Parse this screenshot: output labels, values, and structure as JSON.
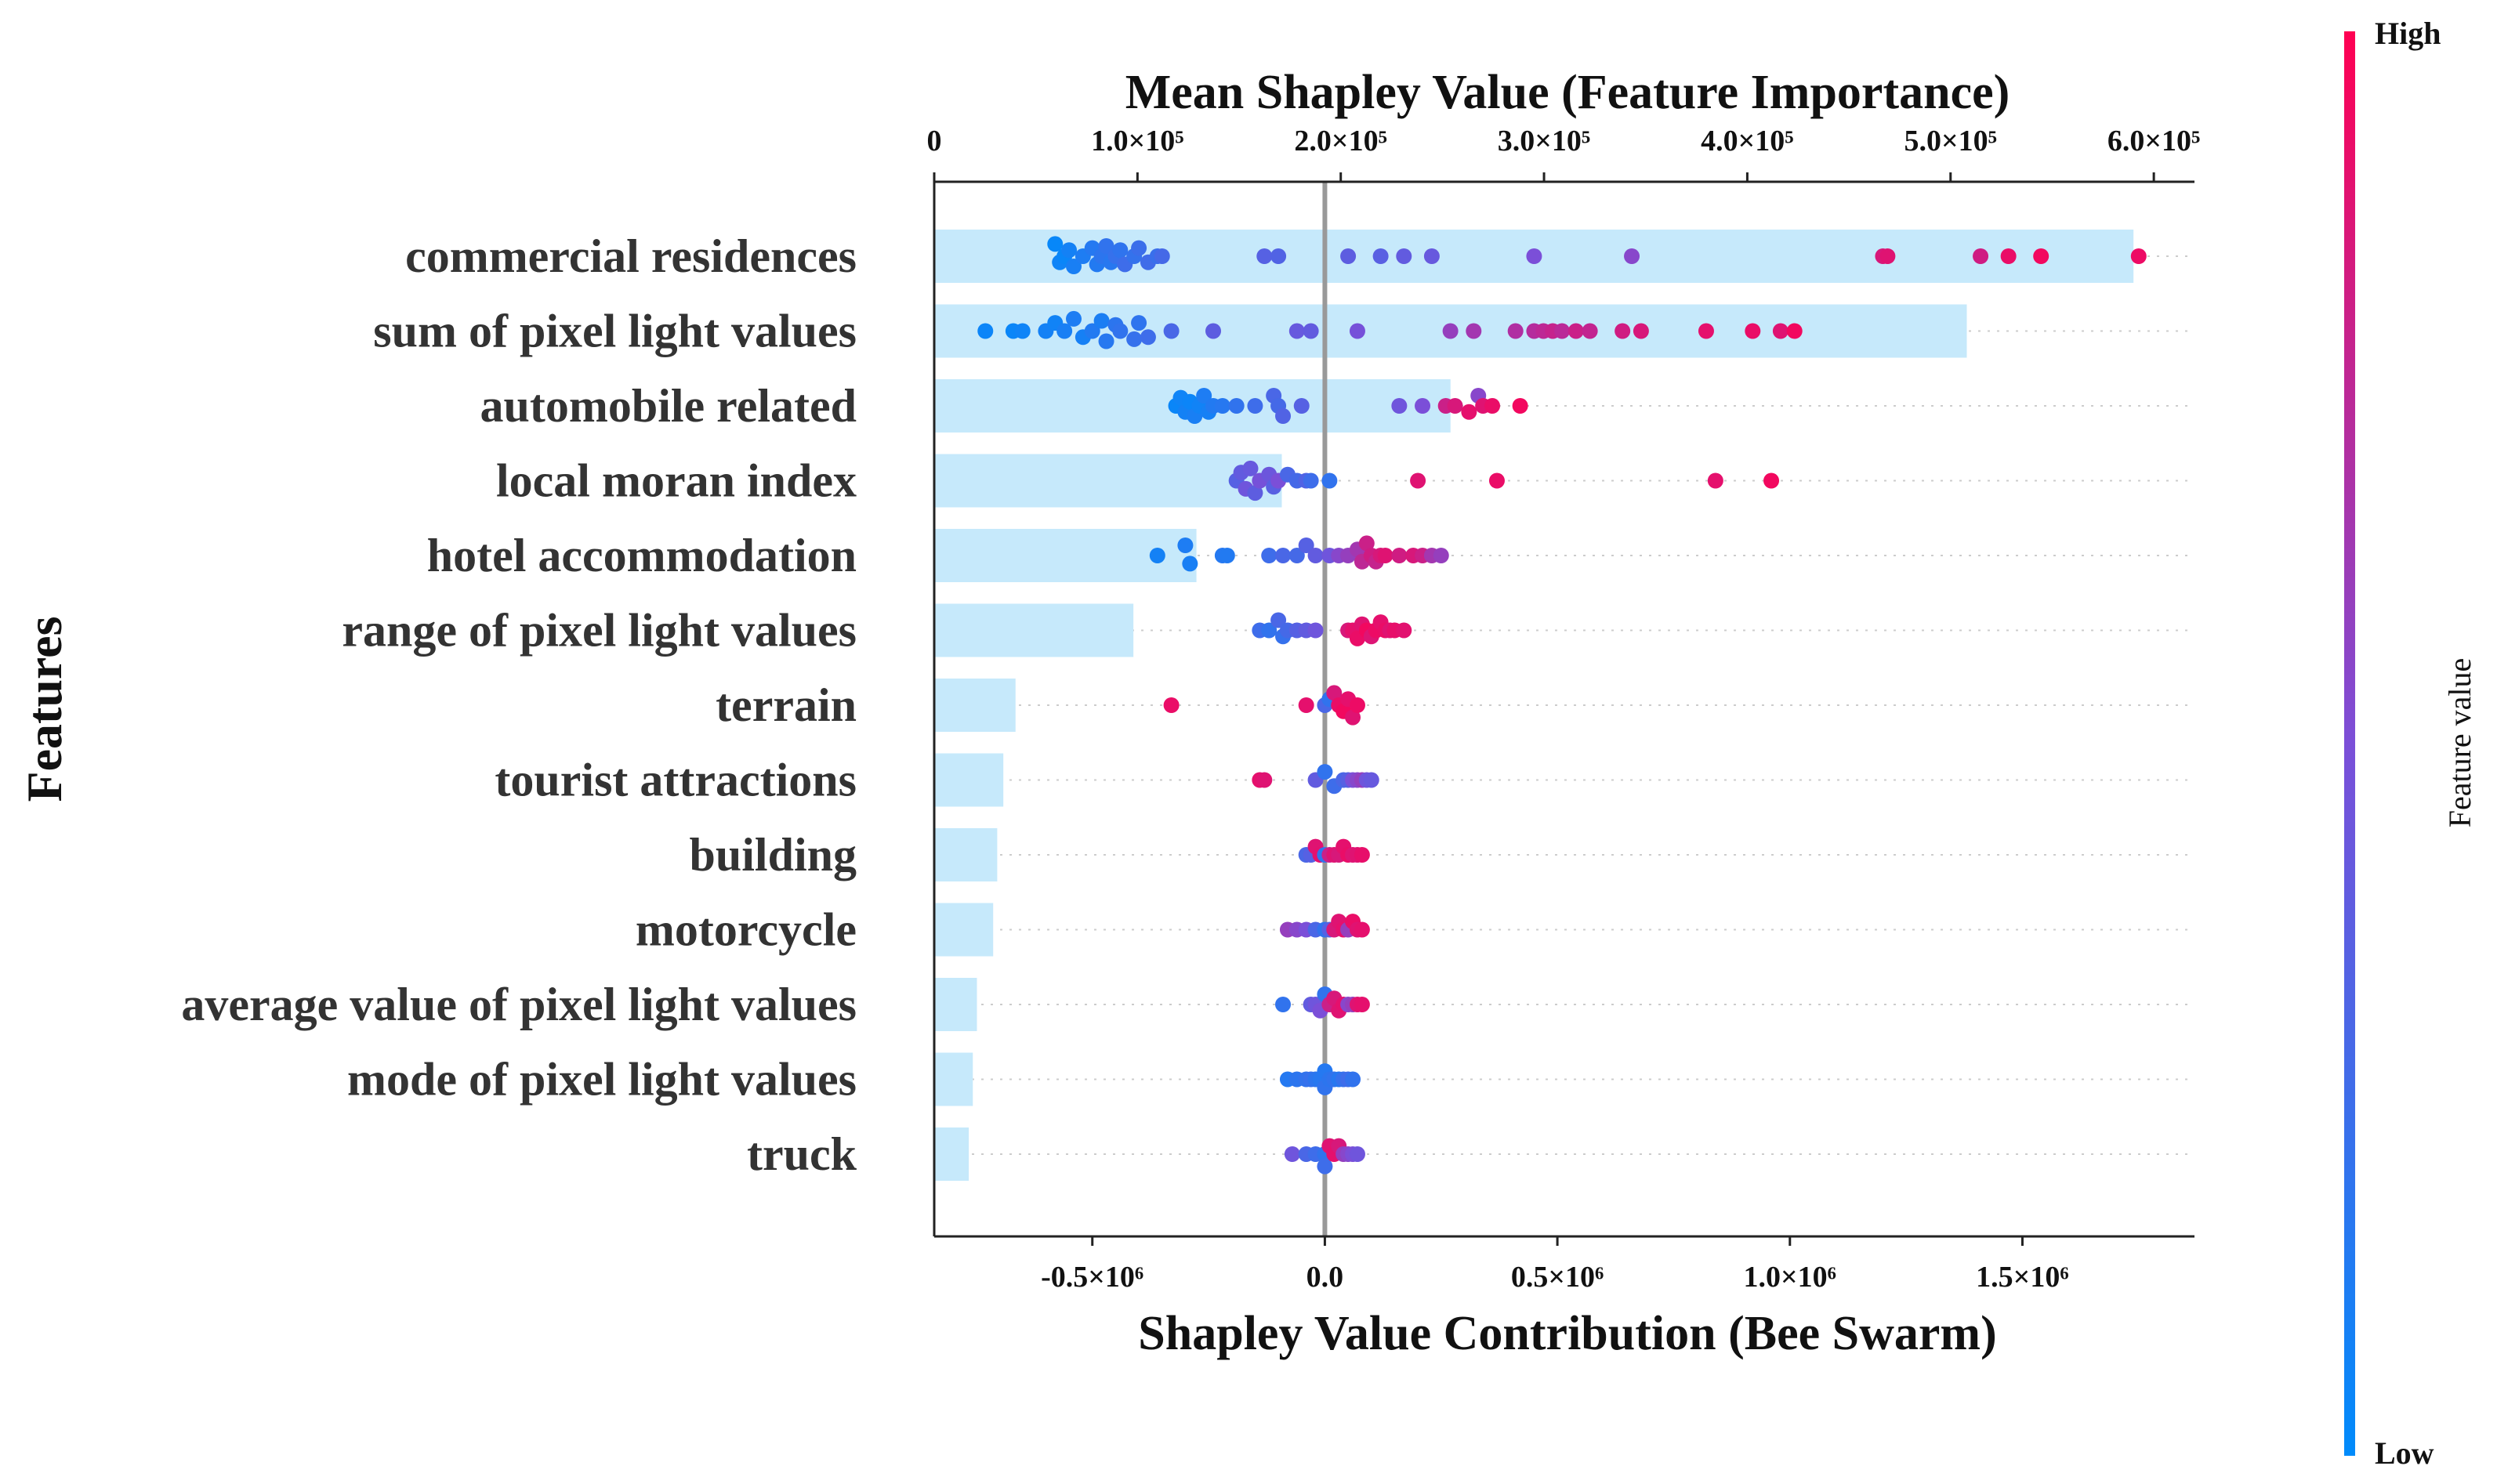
{
  "chart_data": {
    "type": "bar+beeswarm",
    "title": "Mean Shapley Value (Feature Importance)",
    "xlabel": "Shapley Value Contribution (Bee Swarm)",
    "ylabel": "Features",
    "features": [
      "commercial residences",
      "sum of pixel light values",
      "automobile related",
      "local moran index",
      "hotel accommodation",
      "range of pixel light values",
      "terrain",
      "tourist attractions",
      "building",
      "motorcycle",
      "average value of pixel light values",
      "mode of pixel light values",
      "truck"
    ],
    "mean_shap_axis": {
      "range": [
        0,
        620000
      ],
      "ticks": [
        0,
        100000,
        200000,
        300000,
        400000,
        500000,
        600000
      ],
      "tick_labels": [
        "0",
        "1.0×10⁵",
        "2.0×10⁵",
        "3.0×10⁵",
        "4.0×10⁵",
        "5.0×10⁵",
        "6.0×10⁵"
      ]
    },
    "mean_shap_values": [
      590000,
      508000,
      254000,
      171000,
      129000,
      98000,
      40000,
      34000,
      31000,
      29000,
      21000,
      19000,
      17000
    ],
    "bar_color": "#c6e9fb",
    "shap_axis": {
      "range": [
        -840000.0,
        1870000.0
      ],
      "ticks": [
        -500000.0,
        0,
        500000.0,
        1000000.0,
        1500000.0
      ],
      "tick_labels": [
        "-0.5×10⁶",
        "0.0",
        "0.5×10⁶",
        "1.0×10⁶",
        "1.5×10⁶"
      ],
      "zero_line": true
    },
    "points_format": "[shap_value_millions, feature_value_0_to_1, vertical_jitter_-1_to_1]",
    "points": [
      [
        [
          -0.58,
          0.03,
          -0.6
        ],
        [
          -0.57,
          0.06,
          0.3
        ],
        [
          -0.56,
          0.04,
          0.0
        ],
        [
          -0.55,
          0.08,
          -0.3
        ],
        [
          -0.54,
          0.1,
          0.5
        ],
        [
          -0.52,
          0.12,
          0.0
        ],
        [
          -0.5,
          0.15,
          -0.4
        ],
        [
          -0.49,
          0.14,
          0.4
        ],
        [
          -0.48,
          0.18,
          0.0
        ],
        [
          -0.47,
          0.2,
          -0.5
        ],
        [
          -0.46,
          0.16,
          0.3
        ],
        [
          -0.45,
          0.22,
          0.0
        ],
        [
          -0.44,
          0.19,
          -0.3
        ],
        [
          -0.43,
          0.25,
          0.4
        ],
        [
          -0.41,
          0.21,
          0.0
        ],
        [
          -0.4,
          0.24,
          -0.4
        ],
        [
          -0.38,
          0.26,
          0.3
        ],
        [
          -0.36,
          0.23,
          0.0
        ],
        [
          -0.35,
          0.28,
          0.0
        ],
        [
          -0.13,
          0.35,
          0.0
        ],
        [
          -0.1,
          0.33,
          0.0
        ],
        [
          0.05,
          0.38,
          0.0
        ],
        [
          0.12,
          0.36,
          0.0
        ],
        [
          0.17,
          0.4,
          0.0
        ],
        [
          0.23,
          0.42,
          0.0
        ],
        [
          0.45,
          0.5,
          0.0
        ],
        [
          0.66,
          0.55,
          0.0
        ],
        [
          1.2,
          0.85,
          0.0
        ],
        [
          1.21,
          0.88,
          0.0
        ],
        [
          1.41,
          0.82,
          0.0
        ],
        [
          1.47,
          0.92,
          0.0
        ],
        [
          1.54,
          0.95,
          0.0
        ],
        [
          1.75,
          0.93,
          0.0
        ]
      ],
      [
        [
          -0.73,
          0.05,
          0.0
        ],
        [
          -0.67,
          0.04,
          0.0
        ],
        [
          -0.65,
          0.06,
          0.0
        ],
        [
          -0.6,
          0.08,
          0.0
        ],
        [
          -0.58,
          0.07,
          -0.4
        ],
        [
          -0.56,
          0.1,
          0.0
        ],
        [
          -0.54,
          0.12,
          -0.6
        ],
        [
          -0.52,
          0.09,
          0.3
        ],
        [
          -0.5,
          0.14,
          0.0
        ],
        [
          -0.48,
          0.11,
          -0.5
        ],
        [
          -0.47,
          0.16,
          0.5
        ],
        [
          -0.45,
          0.18,
          -0.3
        ],
        [
          -0.44,
          0.2,
          0.0
        ],
        [
          -0.41,
          0.22,
          0.4
        ],
        [
          -0.4,
          0.19,
          -0.4
        ],
        [
          -0.38,
          0.25,
          0.3
        ],
        [
          -0.33,
          0.3,
          0.0
        ],
        [
          -0.24,
          0.38,
          0.0
        ],
        [
          -0.06,
          0.42,
          0.0
        ],
        [
          -0.03,
          0.4,
          0.0
        ],
        [
          0.07,
          0.48,
          0.0
        ],
        [
          0.27,
          0.6,
          0.0
        ],
        [
          0.32,
          0.65,
          0.0
        ],
        [
          0.41,
          0.7,
          0.0
        ],
        [
          0.45,
          0.72,
          0.0
        ],
        [
          0.47,
          0.75,
          0.0
        ],
        [
          0.49,
          0.78,
          0.0
        ],
        [
          0.51,
          0.74,
          0.0
        ],
        [
          0.54,
          0.8,
          0.0
        ],
        [
          0.57,
          0.77,
          0.0
        ],
        [
          0.64,
          0.82,
          0.0
        ],
        [
          0.68,
          0.85,
          0.0
        ],
        [
          0.82,
          0.9,
          0.0
        ],
        [
          0.92,
          0.92,
          0.0
        ],
        [
          0.98,
          0.88,
          0.0
        ],
        [
          1.01,
          0.95,
          0.0
        ]
      ],
      [
        [
          -0.32,
          0.04,
          0.0
        ],
        [
          -0.31,
          0.06,
          -0.4
        ],
        [
          -0.3,
          0.08,
          0.3
        ],
        [
          -0.29,
          0.05,
          -0.2
        ],
        [
          -0.28,
          0.1,
          0.5
        ],
        [
          -0.27,
          0.07,
          0.0
        ],
        [
          -0.26,
          0.12,
          -0.5
        ],
        [
          -0.25,
          0.09,
          0.3
        ],
        [
          -0.24,
          0.14,
          0.0
        ],
        [
          -0.22,
          0.16,
          0.0
        ],
        [
          -0.19,
          0.2,
          0.0
        ],
        [
          -0.15,
          0.25,
          0.0
        ],
        [
          -0.11,
          0.3,
          -0.5
        ],
        [
          -0.1,
          0.28,
          0.0
        ],
        [
          -0.09,
          0.33,
          0.5
        ],
        [
          -0.05,
          0.35,
          0.0
        ],
        [
          0.16,
          0.45,
          0.0
        ],
        [
          0.21,
          0.5,
          0.0
        ],
        [
          0.26,
          0.8,
          0.0
        ],
        [
          0.28,
          0.85,
          0.0
        ],
        [
          0.31,
          0.9,
          0.3
        ],
        [
          0.33,
          0.55,
          -0.5
        ],
        [
          0.34,
          0.88,
          0.0
        ],
        [
          0.36,
          0.92,
          0.0
        ],
        [
          0.42,
          0.95,
          0.0
        ]
      ],
      [
        [
          -0.19,
          0.35,
          0.0
        ],
        [
          -0.18,
          0.4,
          -0.4
        ],
        [
          -0.17,
          0.45,
          0.4
        ],
        [
          -0.16,
          0.42,
          -0.6
        ],
        [
          -0.15,
          0.38,
          0.6
        ],
        [
          -0.14,
          0.48,
          0.0
        ],
        [
          -0.12,
          0.44,
          -0.3
        ],
        [
          -0.11,
          0.36,
          0.3
        ],
        [
          -0.1,
          0.5,
          0.0
        ],
        [
          -0.08,
          0.3,
          -0.3
        ],
        [
          -0.06,
          0.28,
          0.0
        ],
        [
          -0.04,
          0.33,
          0.0
        ],
        [
          -0.03,
          0.25,
          0.0
        ],
        [
          0.01,
          0.2,
          0.0
        ],
        [
          0.2,
          0.88,
          0.0
        ],
        [
          0.37,
          0.92,
          0.0
        ],
        [
          0.84,
          0.9,
          0.0
        ],
        [
          0.96,
          0.95,
          0.0
        ]
      ],
      [
        [
          -0.36,
          0.08,
          0.0
        ],
        [
          -0.3,
          0.12,
          -0.5
        ],
        [
          -0.29,
          0.1,
          0.4
        ],
        [
          -0.22,
          0.15,
          0.0
        ],
        [
          -0.21,
          0.14,
          0.0
        ],
        [
          -0.12,
          0.25,
          0.0
        ],
        [
          -0.09,
          0.3,
          0.0
        ],
        [
          -0.06,
          0.28,
          0.0
        ],
        [
          -0.04,
          0.35,
          -0.5
        ],
        [
          -0.02,
          0.4,
          0.0
        ],
        [
          0.01,
          0.45,
          0.0
        ],
        [
          0.03,
          0.55,
          0.0
        ],
        [
          0.05,
          0.6,
          0.0
        ],
        [
          0.07,
          0.65,
          -0.3
        ],
        [
          0.08,
          0.75,
          0.3
        ],
        [
          0.09,
          0.8,
          -0.6
        ],
        [
          0.1,
          0.82,
          0.0
        ],
        [
          0.11,
          0.78,
          0.3
        ],
        [
          0.12,
          0.85,
          0.0
        ],
        [
          0.13,
          0.88,
          0.0
        ],
        [
          0.16,
          0.82,
          0.0
        ],
        [
          0.19,
          0.85,
          0.0
        ],
        [
          0.21,
          0.8,
          0.0
        ],
        [
          0.23,
          0.65,
          0.0
        ],
        [
          0.25,
          0.6,
          0.0
        ]
      ],
      [
        [
          -0.14,
          0.25,
          0.0
        ],
        [
          -0.12,
          0.2,
          0.0
        ],
        [
          -0.1,
          0.3,
          -0.5
        ],
        [
          -0.09,
          0.22,
          0.3
        ],
        [
          -0.08,
          0.28,
          0.0
        ],
        [
          -0.06,
          0.35,
          0.0
        ],
        [
          -0.04,
          0.4,
          0.0
        ],
        [
          -0.02,
          0.45,
          0.0
        ],
        [
          0.05,
          0.85,
          0.0
        ],
        [
          0.06,
          0.9,
          0.0
        ],
        [
          0.07,
          0.92,
          0.4
        ],
        [
          0.08,
          0.88,
          -0.3
        ],
        [
          0.09,
          0.95,
          0.0
        ],
        [
          0.1,
          0.87,
          0.3
        ],
        [
          0.11,
          0.93,
          0.0
        ],
        [
          0.12,
          0.9,
          -0.4
        ],
        [
          0.13,
          0.92,
          0.0
        ],
        [
          0.14,
          0.88,
          0.0
        ],
        [
          0.15,
          0.91,
          0.0
        ],
        [
          0.17,
          0.89,
          0.0
        ]
      ],
      [
        [
          -0.33,
          0.92,
          0.0
        ],
        [
          -0.04,
          0.9,
          0.0
        ],
        [
          0.0,
          0.3,
          0.0
        ],
        [
          0.01,
          0.2,
          -0.3
        ],
        [
          0.02,
          0.85,
          -0.6
        ],
        [
          0.03,
          0.92,
          0.0
        ],
        [
          0.04,
          0.95,
          0.3
        ],
        [
          0.05,
          0.9,
          -0.3
        ],
        [
          0.06,
          0.88,
          0.6
        ],
        [
          0.07,
          0.93,
          0.0
        ]
      ],
      [
        [
          -0.14,
          0.9,
          0.0
        ],
        [
          -0.13,
          0.88,
          0.0
        ],
        [
          -0.02,
          0.4,
          0.0
        ],
        [
          0.0,
          0.2,
          -0.4
        ],
        [
          0.02,
          0.25,
          0.3
        ],
        [
          0.04,
          0.3,
          0.0
        ],
        [
          0.05,
          0.35,
          0.0
        ],
        [
          0.06,
          0.5,
          0.0
        ],
        [
          0.07,
          0.55,
          0.0
        ],
        [
          0.08,
          0.6,
          0.0
        ],
        [
          0.09,
          0.45,
          0.0
        ],
        [
          0.1,
          0.42,
          0.0
        ]
      ],
      [
        [
          -0.04,
          0.3,
          0.0
        ],
        [
          -0.03,
          0.35,
          0.0
        ],
        [
          -0.02,
          0.88,
          -0.4
        ],
        [
          -0.01,
          0.9,
          0.0
        ],
        [
          0.0,
          0.2,
          0.0
        ],
        [
          0.01,
          0.8,
          0.0
        ],
        [
          0.02,
          0.88,
          0.0
        ],
        [
          0.03,
          0.85,
          0.0
        ],
        [
          0.04,
          0.9,
          -0.4
        ],
        [
          0.05,
          0.92,
          0.0
        ],
        [
          0.06,
          0.87,
          0.0
        ],
        [
          0.07,
          0.88,
          0.0
        ],
        [
          0.08,
          0.91,
          0.0
        ]
      ],
      [
        [
          -0.08,
          0.6,
          0.0
        ],
        [
          -0.06,
          0.55,
          0.0
        ],
        [
          -0.04,
          0.5,
          0.0
        ],
        [
          -0.02,
          0.3,
          0.0
        ],
        [
          0.0,
          0.2,
          0.0
        ],
        [
          0.01,
          0.35,
          0.0
        ],
        [
          0.02,
          0.85,
          0.0
        ],
        [
          0.03,
          0.88,
          -0.4
        ],
        [
          0.04,
          0.9,
          0.0
        ],
        [
          0.05,
          0.6,
          0.0
        ],
        [
          0.06,
          0.92,
          -0.4
        ],
        [
          0.07,
          0.88,
          0.0
        ],
        [
          0.08,
          0.9,
          0.0
        ]
      ],
      [
        [
          -0.09,
          0.2,
          0.0
        ],
        [
          -0.03,
          0.4,
          0.0
        ],
        [
          -0.02,
          0.45,
          0.0
        ],
        [
          -0.01,
          0.5,
          0.3
        ],
        [
          0.0,
          0.2,
          -0.5
        ],
        [
          0.01,
          0.8,
          0.0
        ],
        [
          0.02,
          0.85,
          -0.3
        ],
        [
          0.03,
          0.88,
          0.3
        ],
        [
          0.04,
          0.9,
          0.0
        ],
        [
          0.05,
          0.55,
          0.0
        ],
        [
          0.06,
          0.6,
          0.0
        ],
        [
          0.07,
          0.88,
          0.0
        ],
        [
          0.08,
          0.9,
          0.0
        ]
      ],
      [
        [
          -0.08,
          0.15,
          0.0
        ],
        [
          -0.06,
          0.18,
          0.0
        ],
        [
          -0.04,
          0.2,
          0.0
        ],
        [
          -0.03,
          0.22,
          0.0
        ],
        [
          -0.02,
          0.18,
          0.0
        ],
        [
          -0.01,
          0.16,
          0.0
        ],
        [
          0.0,
          0.15,
          -0.4
        ],
        [
          0.0,
          0.2,
          0.4
        ],
        [
          0.01,
          0.18,
          0.0
        ],
        [
          0.02,
          0.2,
          0.0
        ],
        [
          0.03,
          0.16,
          0.0
        ],
        [
          0.04,
          0.22,
          0.0
        ],
        [
          0.05,
          0.25,
          0.0
        ],
        [
          0.06,
          0.2,
          0.0
        ]
      ],
      [
        [
          -0.07,
          0.45,
          0.0
        ],
        [
          -0.04,
          0.3,
          0.0
        ],
        [
          -0.02,
          0.25,
          0.0
        ],
        [
          0.0,
          0.2,
          0.0
        ],
        [
          0.0,
          0.25,
          0.6
        ],
        [
          0.01,
          0.88,
          -0.4
        ],
        [
          0.02,
          0.9,
          0.0
        ],
        [
          0.03,
          0.85,
          -0.4
        ],
        [
          0.04,
          0.6,
          0.0
        ],
        [
          0.05,
          0.55,
          0.0
        ],
        [
          0.06,
          0.5,
          0.0
        ],
        [
          0.07,
          0.45,
          0.0
        ]
      ]
    ],
    "colorbar": {
      "title": "Feature value",
      "high_label": "High",
      "low_label": "Low",
      "low_color": "#008bfb",
      "mid_color": "#7b4fd8",
      "high_color": "#ff0052"
    }
  }
}
